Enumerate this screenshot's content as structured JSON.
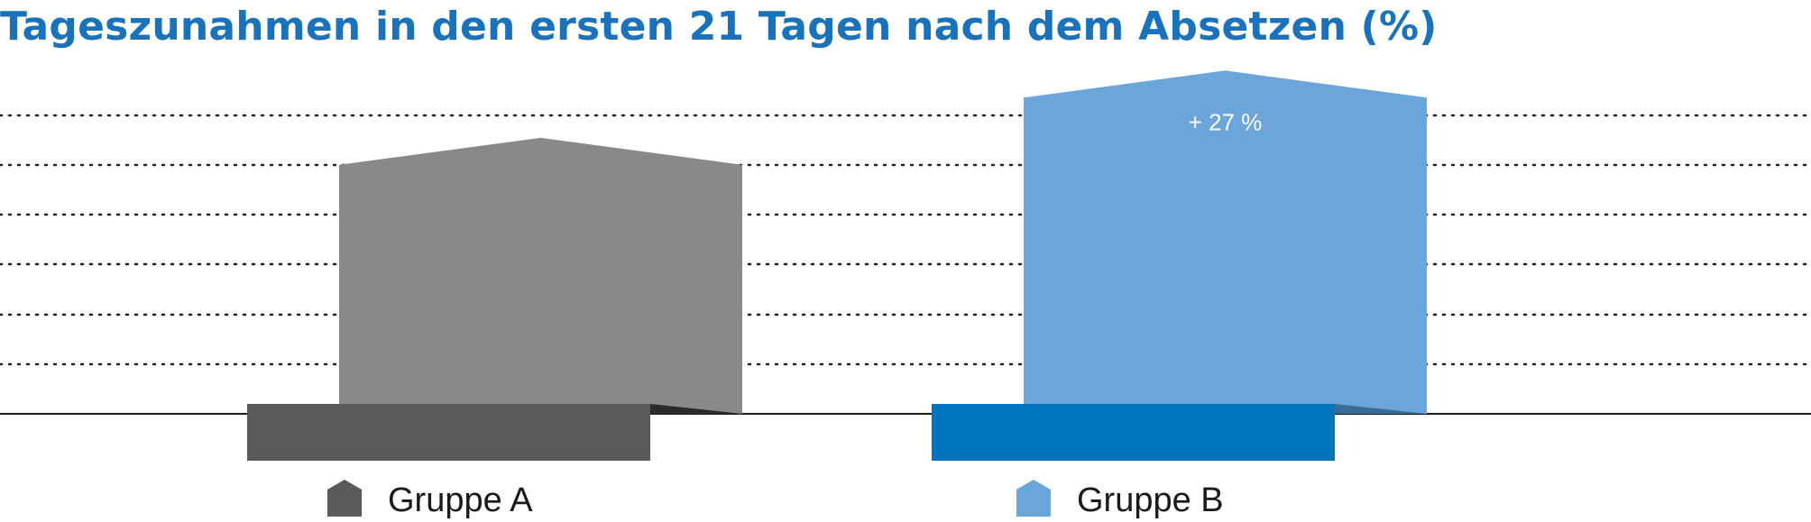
{
  "title": "Tageszunahmen in den ersten 21 Tagen nach dem Absetzen (%)",
  "chart_data": {
    "type": "bar",
    "title": "Tageszunahmen in den ersten 21 Tagen nach dem Absetzen (%)",
    "xlabel": "",
    "ylabel": "",
    "categories": [
      "Gruppe A",
      "Gruppe B"
    ],
    "values": [
      100,
      127
    ],
    "ylim": [
      0,
      130
    ],
    "grid": true,
    "legend_position": "bottom",
    "data_labels": [
      "",
      "+ 27 %"
    ],
    "colors": {
      "top": [
        "#898989",
        "#6ca5da"
      ],
      "base": [
        "#5a5a59",
        "#0073bf"
      ],
      "fold": [
        "#2b2b2b",
        "#3a6d96"
      ],
      "legend": [
        "#5a5a59",
        "#6ca5da"
      ]
    }
  }
}
